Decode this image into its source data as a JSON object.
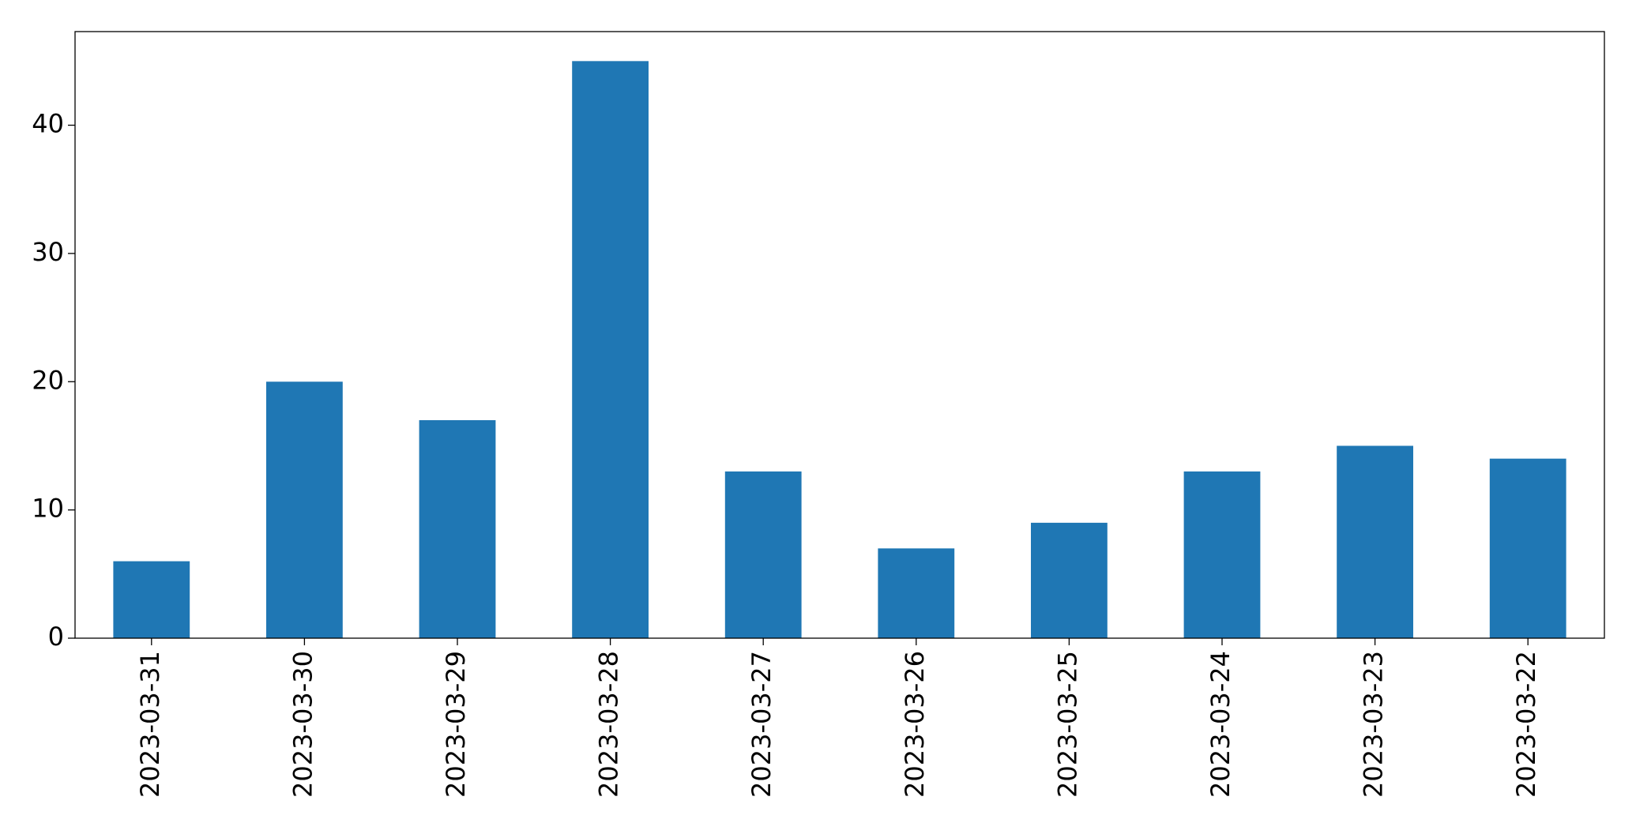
{
  "chart_data": {
    "type": "bar",
    "categories": [
      "2023-03-31",
      "2023-03-30",
      "2023-03-29",
      "2023-03-28",
      "2023-03-27",
      "2023-03-26",
      "2023-03-25",
      "2023-03-24",
      "2023-03-23",
      "2023-03-22"
    ],
    "values": [
      6,
      20,
      17,
      45,
      13,
      7,
      9,
      13,
      15,
      14
    ],
    "color": "#1f77b4",
    "ylim": [
      0,
      47.3
    ],
    "yticks": [
      0,
      10,
      20,
      30,
      40
    ],
    "grid": false
  }
}
